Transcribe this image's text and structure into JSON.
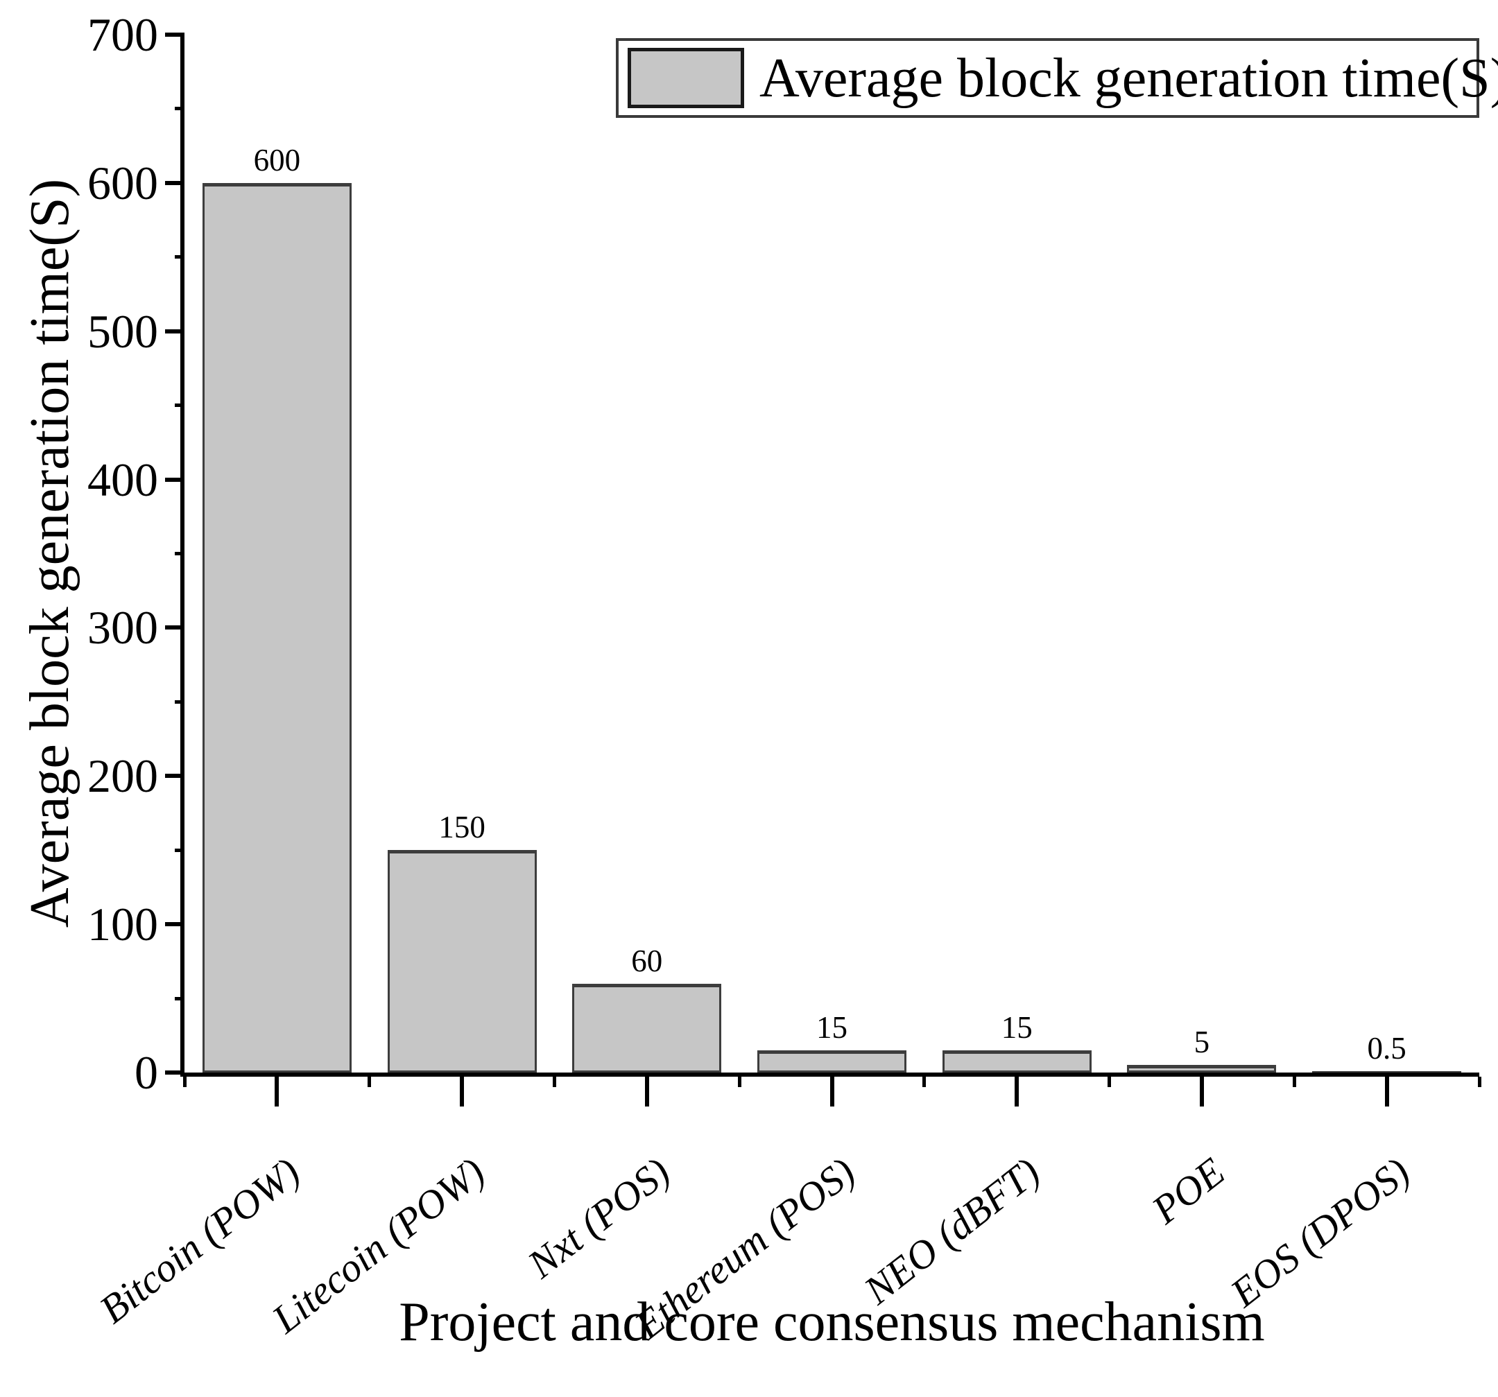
{
  "chart_data": {
    "type": "bar",
    "title": "",
    "xlabel": "Project and core consensus mechanism",
    "ylabel": "Average block generation time(S)",
    "legend": {
      "position": "top-right",
      "entries": [
        {
          "label": "Average block generation time(S)",
          "swatch_color": "#c6c6c6"
        }
      ]
    },
    "categories": [
      "Bitcoin (POW)",
      "Litecoin (POW)",
      "Nxt (POS)",
      "Ethereum (POS)",
      "NEO (dBFT)",
      "POE",
      "EOS (DPOS)"
    ],
    "series": [
      {
        "name": "Average block generation time(S)",
        "values": [
          600,
          150,
          60,
          15,
          15,
          5,
          0.5
        ]
      }
    ],
    "bar_value_labels": [
      "600",
      "150",
      "60",
      "15",
      "15",
      "5",
      "0.5"
    ],
    "ylim": [
      0,
      700
    ],
    "yticks": [
      700,
      600,
      500,
      400,
      300,
      200,
      100,
      0
    ],
    "y_minor_ticks": [
      650,
      550,
      450,
      350,
      250,
      150,
      50
    ],
    "grid": false,
    "styles": {
      "bar_fill": "#c6c6c6",
      "bar_border": "#3d3d3d",
      "axis_color": "#000000",
      "text_color": "#000000",
      "background": "#ffffff"
    }
  }
}
